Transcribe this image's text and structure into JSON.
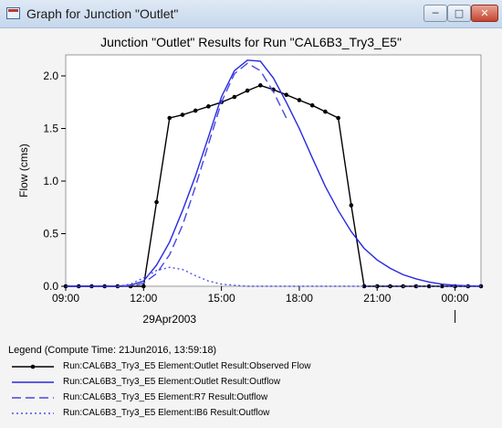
{
  "window": {
    "title": "Graph for Junction \"Outlet\"",
    "buttons": {
      "minimize": "─",
      "maximize": "□",
      "close": "✕"
    }
  },
  "chart_data": {
    "type": "line",
    "title": "Junction \"Outlet\" Results for Run \"CAL6B3_Try3_E5\"",
    "xlabel": "",
    "ylabel": "Flow (cms)",
    "x_unit": "hours on 29Apr2003 (24 = 00:00 next day)",
    "xlim": [
      9,
      25
    ],
    "ylim": [
      0,
      2.2
    ],
    "x_ticks": [
      {
        "value": 9,
        "label": "09:00"
      },
      {
        "value": 12,
        "label": "12:00"
      },
      {
        "value": 15,
        "label": "15:00"
      },
      {
        "value": 18,
        "label": "18:00"
      },
      {
        "value": 21,
        "label": "21:00"
      },
      {
        "value": 24,
        "label": "00:00"
      }
    ],
    "x_date_label": "29Apr2003",
    "y_ticks": [
      {
        "value": 0,
        "label": "0.0"
      },
      {
        "value": 0.5,
        "label": "0.5"
      },
      {
        "value": 1,
        "label": "1.0"
      },
      {
        "value": 1.5,
        "label": "1.5"
      },
      {
        "value": 2,
        "label": "2.0"
      }
    ],
    "legend_title": "Legend (Compute Time: 21Jun2016, 13:59:18)",
    "legend_position": "bottom",
    "series": [
      {
        "name": "Run:CAL6B3_Try3_E5 Element:Outlet Result:Observed Flow",
        "color": "#000000",
        "style": "solid-markers",
        "points": [
          [
            9,
            0
          ],
          [
            9.5,
            0
          ],
          [
            10,
            0
          ],
          [
            10.5,
            0
          ],
          [
            11,
            0
          ],
          [
            11.5,
            0
          ],
          [
            12,
            0
          ],
          [
            12.5,
            0.8
          ],
          [
            13,
            1.6
          ],
          [
            13.5,
            1.63
          ],
          [
            14,
            1.67
          ],
          [
            14.5,
            1.71
          ],
          [
            15,
            1.75
          ],
          [
            15.5,
            1.8
          ],
          [
            16,
            1.86
          ],
          [
            16.5,
            1.91
          ],
          [
            17,
            1.87
          ],
          [
            17.5,
            1.82
          ],
          [
            18,
            1.77
          ],
          [
            18.5,
            1.72
          ],
          [
            19,
            1.66
          ],
          [
            19.5,
            1.6
          ],
          [
            20,
            0.77
          ],
          [
            20.5,
            0
          ],
          [
            21,
            0
          ],
          [
            21.5,
            0
          ],
          [
            22,
            0
          ],
          [
            22.5,
            0
          ],
          [
            23,
            0
          ],
          [
            23.5,
            0
          ],
          [
            24,
            0
          ],
          [
            24.5,
            0
          ],
          [
            25,
            0
          ]
        ]
      },
      {
        "name": "Run:CAL6B3_Try3_E5 Element:Outlet Result:Outflow",
        "color": "#2828e0",
        "style": "solid",
        "points": [
          [
            9,
            0
          ],
          [
            11,
            0
          ],
          [
            11.5,
            0.01
          ],
          [
            12,
            0.05
          ],
          [
            12.5,
            0.2
          ],
          [
            13,
            0.42
          ],
          [
            13.5,
            0.72
          ],
          [
            14,
            1.05
          ],
          [
            14.5,
            1.42
          ],
          [
            15,
            1.8
          ],
          [
            15.5,
            2.05
          ],
          [
            16,
            2.15
          ],
          [
            16.5,
            2.14
          ],
          [
            17,
            1.98
          ],
          [
            17.5,
            1.75
          ],
          [
            18,
            1.5
          ],
          [
            18.5,
            1.22
          ],
          [
            19,
            0.95
          ],
          [
            19.5,
            0.72
          ],
          [
            20,
            0.52
          ],
          [
            20.5,
            0.36
          ],
          [
            21,
            0.25
          ],
          [
            21.5,
            0.17
          ],
          [
            22,
            0.11
          ],
          [
            22.5,
            0.07
          ],
          [
            23,
            0.04
          ],
          [
            23.5,
            0.02
          ],
          [
            24,
            0.01
          ],
          [
            25,
            0
          ]
        ]
      },
      {
        "name": "Run:CAL6B3_Try3_E5 Element:R7 Result:Outflow",
        "color": "#4646e6",
        "style": "dashed",
        "points": [
          [
            11.2,
            0
          ],
          [
            11.7,
            0.01
          ],
          [
            12,
            0.03
          ],
          [
            12.5,
            0.12
          ],
          [
            13,
            0.3
          ],
          [
            13.5,
            0.58
          ],
          [
            14,
            0.95
          ],
          [
            14.5,
            1.35
          ],
          [
            15,
            1.75
          ],
          [
            15.5,
            2.02
          ],
          [
            16,
            2.12
          ],
          [
            16.5,
            2.05
          ],
          [
            17,
            1.85
          ],
          [
            17.5,
            1.6
          ]
        ]
      },
      {
        "name": "Run:CAL6B3_Try3_E5 Element:IB6 Result:Outflow",
        "color": "#5050ea",
        "style": "dotted",
        "points": [
          [
            11,
            0
          ],
          [
            11.5,
            0.02
          ],
          [
            12,
            0.08
          ],
          [
            12.5,
            0.15
          ],
          [
            13,
            0.18
          ],
          [
            13.5,
            0.16
          ],
          [
            14,
            0.1
          ],
          [
            14.5,
            0.05
          ],
          [
            15,
            0.02
          ],
          [
            15.5,
            0.01
          ],
          [
            16,
            0
          ],
          [
            25,
            0
          ]
        ]
      }
    ]
  }
}
